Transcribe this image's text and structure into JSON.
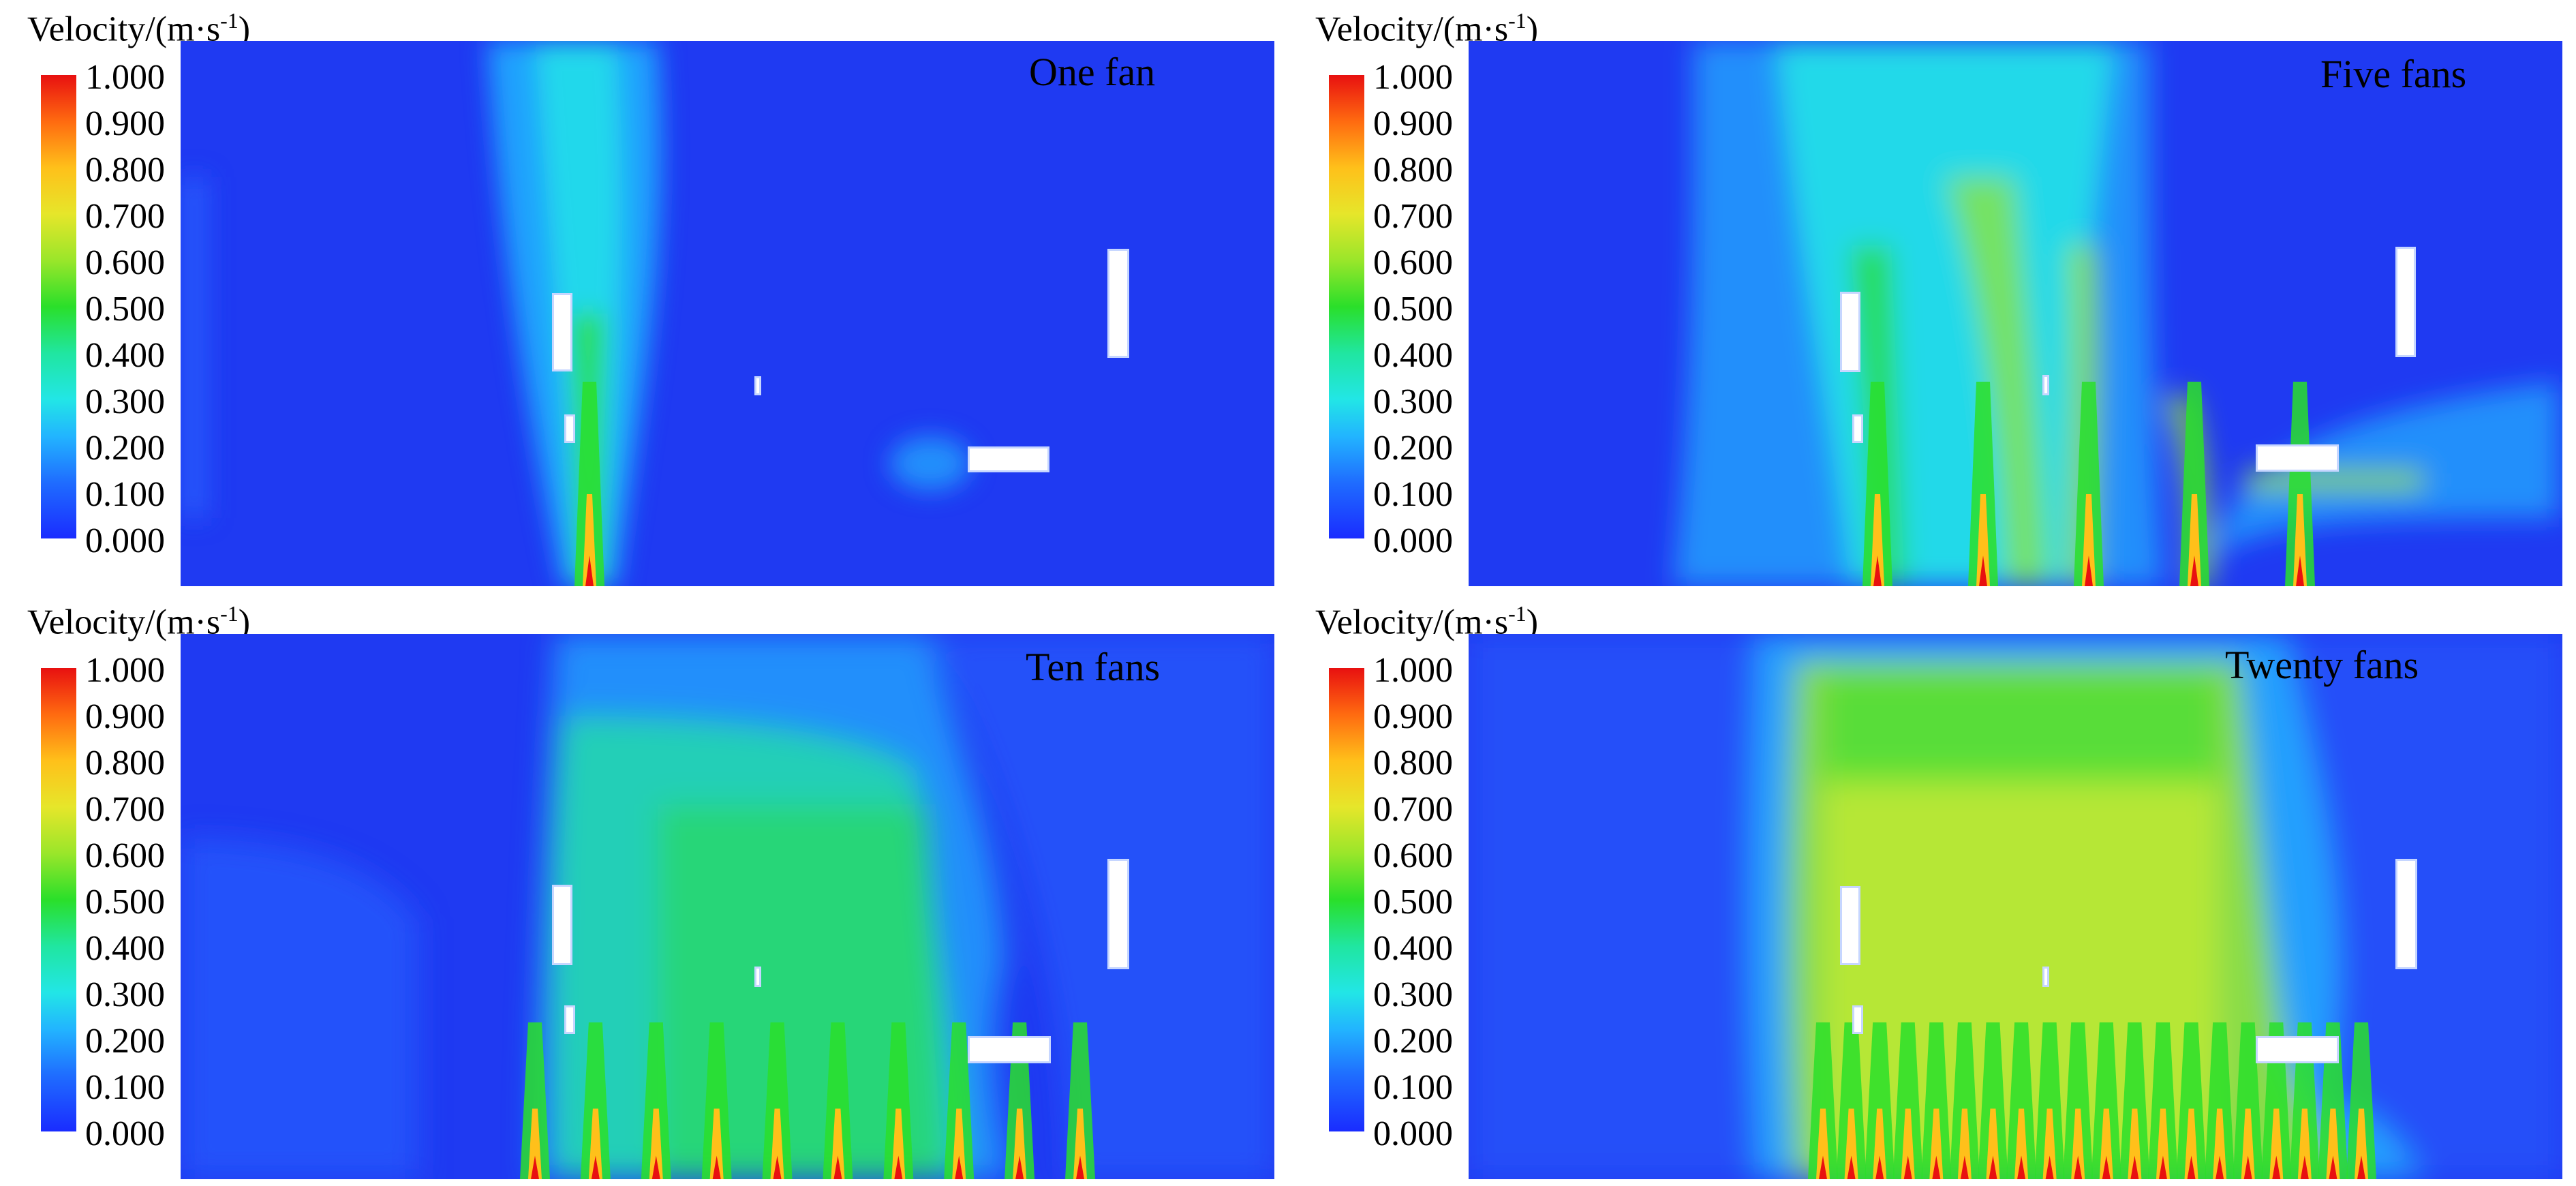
{
  "colorbar": {
    "title": "Velocity/(m·s",
    "title_exp": "-1",
    "title_end": ")",
    "ticks": [
      "1.000",
      "0.900",
      "0.800",
      "0.700",
      "0.600",
      "0.500",
      "0.400",
      "0.300",
      "0.200",
      "0.100",
      "0.000"
    ],
    "colors": [
      "#1a2cff",
      "#22b4ff",
      "#20e6a0",
      "#2adf2a",
      "#e6e62a",
      "#ffc01a",
      "#e81010"
    ]
  },
  "panels": [
    {
      "label": "One fan",
      "fans": 1
    },
    {
      "label": "Five fans",
      "fans": 5
    },
    {
      "label": "Ten fans",
      "fans": 10
    },
    {
      "label": "Twenty fans",
      "fans": 20
    }
  ]
}
